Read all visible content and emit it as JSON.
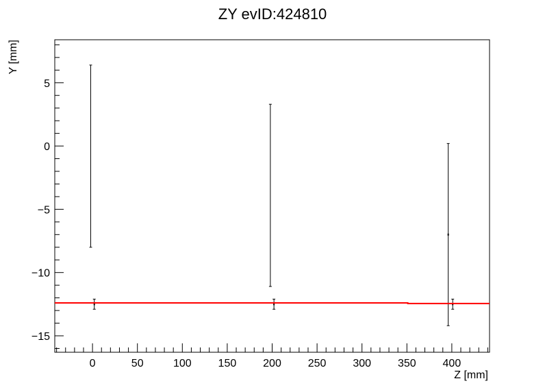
{
  "chart_data": {
    "type": "scatter",
    "title": "ZY evID:424810",
    "xlabel": "Z [mm]",
    "ylabel": "Y [mm]",
    "xlim": [
      -42,
      442
    ],
    "ylim": [
      -16.3,
      8.4
    ],
    "x_ticks": [
      0,
      50,
      100,
      150,
      200,
      250,
      300,
      350,
      400
    ],
    "y_ticks": [
      -15,
      -10,
      -5,
      0,
      5
    ],
    "x_tick_labels": [
      "0",
      "50",
      "100",
      "150",
      "200",
      "250",
      "300",
      "350",
      "400"
    ],
    "y_tick_labels": [
      "−15",
      "−10",
      "−5",
      "0",
      "5"
    ],
    "grid": false,
    "legend": "none",
    "series": [
      {
        "color": "#000000",
        "points": [
          {
            "x": -2,
            "y_low": -8.0,
            "y_high": 6.4
          },
          {
            "x": 198,
            "y_low": -11.1,
            "y_high": 3.3
          },
          {
            "x": 396,
            "y_low": -14.2,
            "y_high": 0.2,
            "y": -7.0
          }
        ]
      },
      {
        "color": "#000000",
        "points": [
          {
            "x": 2,
            "y": -12.5,
            "y_low": -12.9,
            "y_high": -12.1
          },
          {
            "x": 202,
            "y": -12.5,
            "y_low": -12.9,
            "y_high": -12.1
          },
          {
            "x": 401,
            "y": -12.5,
            "y_low": -12.9,
            "y_high": -12.1
          }
        ]
      }
    ],
    "fit_line": {
      "color": "#ff0000",
      "points": [
        {
          "x": -42,
          "y": -12.4
        },
        {
          "x": 351,
          "y": -12.4
        },
        {
          "x": 351,
          "y": -12.45
        },
        {
          "x": 442,
          "y": -12.45
        }
      ]
    }
  }
}
